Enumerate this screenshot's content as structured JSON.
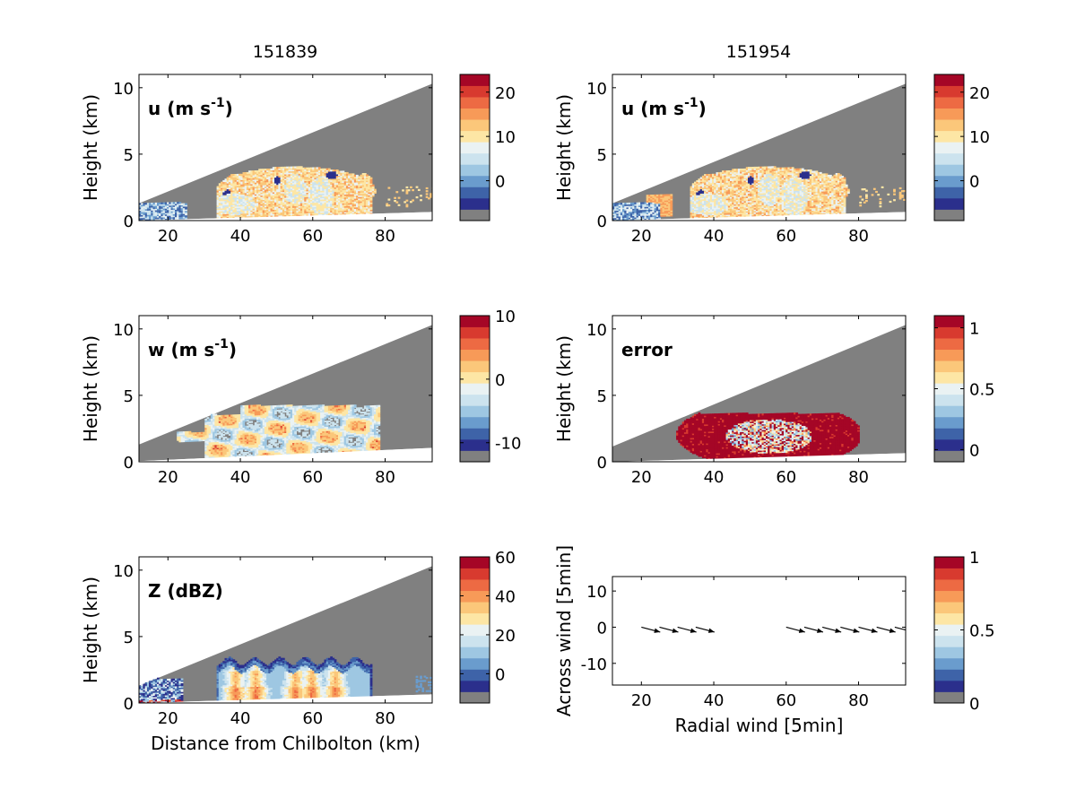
{
  "column_titles": [
    "151839",
    "151954"
  ],
  "colors": {
    "no_data": "#808080",
    "palette": [
      "#2b2f8c",
      "#3e63a8",
      "#6a9ccd",
      "#9ec7e2",
      "#cce3ee",
      "#eaf2f3",
      "#fde6a5",
      "#fbc77a",
      "#f79a58",
      "#ed6a43",
      "#d83a2f",
      "#a50626"
    ]
  },
  "chart_data": [
    {
      "id": "u1",
      "type": "heatmap",
      "label_main": "u (m s",
      "label_sup": "-1",
      "label_tail": ")",
      "xlabel": "",
      "ylabel": "Height (km)",
      "xlim": [
        12,
        93
      ],
      "ylim": [
        0,
        11
      ],
      "xticks": [
        "20",
        "40",
        "60",
        "80"
      ],
      "yticks": [
        "0",
        "5",
        "10"
      ],
      "colorbar": {
        "min": -9,
        "max": 24,
        "ticks": [
          "20",
          "10",
          "0"
        ],
        "tick_values": [
          20,
          10,
          0
        ]
      },
      "x_range_km": [
        12,
        93
      ],
      "field": "velocity"
    },
    {
      "id": "u2",
      "type": "heatmap",
      "label_main": "u (m s",
      "label_sup": "-1",
      "label_tail": ")",
      "xlabel": "",
      "ylabel": "Height (km)",
      "xlim": [
        12,
        93
      ],
      "ylim": [
        0,
        11
      ],
      "xticks": [
        "20",
        "40",
        "60",
        "80"
      ],
      "yticks": [
        "0",
        "5",
        "10"
      ],
      "colorbar": {
        "min": -9,
        "max": 24,
        "ticks": [
          "20",
          "10",
          "0"
        ],
        "tick_values": [
          20,
          10,
          0
        ]
      },
      "field": "velocity"
    },
    {
      "id": "w",
      "type": "heatmap",
      "label_main": "w (m s",
      "label_sup": "-1",
      "label_tail": ")",
      "xlabel": "",
      "ylabel": "Height (km)",
      "xlim": [
        12,
        93
      ],
      "ylim": [
        0,
        11
      ],
      "xticks": [
        "20",
        "40",
        "60",
        "80"
      ],
      "yticks": [
        "0",
        "5",
        "10"
      ],
      "colorbar": {
        "min": -13,
        "max": 10,
        "ticks": [
          "10",
          "0",
          "-10"
        ],
        "tick_values": [
          10,
          0,
          -10
        ]
      },
      "field": "vertical"
    },
    {
      "id": "err",
      "type": "heatmap",
      "label_main": "error",
      "label_sup": "",
      "label_tail": "",
      "xlabel": "",
      "ylabel": "Height (km)",
      "xlim": [
        12,
        93
      ],
      "ylim": [
        0,
        11
      ],
      "xticks": [
        "20",
        "40",
        "60",
        "80"
      ],
      "yticks": [
        "0",
        "5",
        "10"
      ],
      "colorbar": {
        "min": -0.1,
        "max": 1.1,
        "ticks": [
          "1",
          "0.5",
          "0"
        ],
        "tick_values": [
          1,
          0.5,
          0
        ]
      },
      "field": "error"
    },
    {
      "id": "z",
      "type": "heatmap",
      "label_main": "Z (dBZ)",
      "label_sup": "",
      "label_tail": "",
      "xlabel": "Distance from Chilbolton (km)",
      "ylabel": "Height (km)",
      "xlim": [
        12,
        93
      ],
      "ylim": [
        0,
        11
      ],
      "xticks": [
        "20",
        "40",
        "60",
        "80"
      ],
      "yticks": [
        "0",
        "5",
        "10"
      ],
      "colorbar": {
        "min": -15,
        "max": 60,
        "ticks": [
          "60",
          "40",
          "20",
          "0"
        ],
        "tick_values": [
          60,
          40,
          20,
          0
        ]
      },
      "field": "reflectivity"
    },
    {
      "id": "quiver",
      "type": "scatter",
      "label_main": "",
      "label_sup": "",
      "label_tail": "",
      "xlabel": "Radial wind [5min]",
      "ylabel": "Across wind [5min]",
      "xlim": [
        12,
        93
      ],
      "ylim": [
        -16,
        14
      ],
      "xticks": [
        "20",
        "40",
        "60",
        "80"
      ],
      "yticks": [
        "10",
        "0",
        "-10"
      ],
      "ytick_values": [
        10,
        0,
        -10
      ],
      "colorbar": {
        "min": 0,
        "max": 1,
        "ticks": [
          "1",
          "0.5",
          "0"
        ],
        "tick_values": [
          1,
          0.5,
          0
        ]
      },
      "arrows": [
        {
          "x": 20,
          "y": 0,
          "u": 5.2,
          "v": -1.8
        },
        {
          "x": 25,
          "y": 0,
          "u": 5.2,
          "v": -1.8
        },
        {
          "x": 30,
          "y": 0,
          "u": 5.2,
          "v": -1.8
        },
        {
          "x": 35,
          "y": 0,
          "u": 5.2,
          "v": -1.8
        },
        {
          "x": 60,
          "y": 0,
          "u": 5.2,
          "v": -1.8
        },
        {
          "x": 65,
          "y": 0,
          "u": 5.2,
          "v": -1.8
        },
        {
          "x": 70,
          "y": 0,
          "u": 5.2,
          "v": -1.8
        },
        {
          "x": 75,
          "y": 0,
          "u": 5.2,
          "v": -1.8
        },
        {
          "x": 80,
          "y": 0,
          "u": 5.2,
          "v": -1.8
        },
        {
          "x": 85,
          "y": 0,
          "u": 5.2,
          "v": -1.8
        },
        {
          "x": 90,
          "y": 0,
          "u": 5.2,
          "v": -1.8
        }
      ]
    }
  ]
}
